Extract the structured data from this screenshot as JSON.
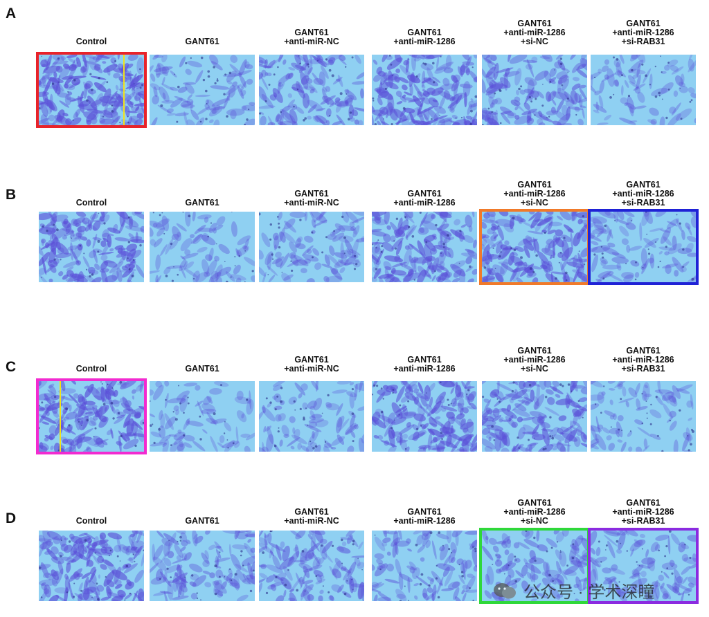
{
  "rows": [
    {
      "letter": "A",
      "labels": [
        "Control",
        "GANT61",
        "GANT61\n+anti-miR-NC",
        "GANT61\n+anti-miR-1286",
        "GANT61\n+anti-miR-1286\n+si-NC",
        "GANT61\n+anti-miR-1286\n+si-RAB31"
      ],
      "densities": [
        0.95,
        0.35,
        0.6,
        0.85,
        0.65,
        0.3
      ]
    },
    {
      "letter": "B",
      "labels": [
        "Control",
        "GANT61",
        "GANT61\n+anti-miR-NC",
        "GANT61\n+anti-miR-1286",
        "GANT61\n+anti-miR-1286\n+si-NC",
        "GANT61\n+anti-miR-1286\n+si-RAB31"
      ],
      "densities": [
        0.85,
        0.3,
        0.4,
        0.75,
        0.8,
        0.35
      ]
    },
    {
      "letter": "C",
      "labels": [
        "Control",
        "GANT61",
        "GANT61\n+anti-miR-NC",
        "GANT61\n+anti-miR-1286",
        "GANT61\n+anti-miR-1286\n+si-NC",
        "GANT61\n+anti-miR-1286\n+si-RAB31"
      ],
      "densities": [
        0.9,
        0.25,
        0.35,
        0.85,
        0.75,
        0.3
      ]
    },
    {
      "letter": "D",
      "labels": [
        "Control",
        "GANT61",
        "GANT61\n+anti-miR-NC",
        "GANT61\n+anti-miR-1286",
        "GANT61\n+anti-miR-1286\n+si-NC",
        "GANT61\n+anti-miR-1286\n+si-RAB31"
      ],
      "densities": [
        0.85,
        0.5,
        0.55,
        0.45,
        0.45,
        0.4
      ]
    }
  ],
  "highlights": [
    {
      "row": 0,
      "col": 0,
      "color": "#e8232a"
    },
    {
      "row": 1,
      "col": 4,
      "color": "#f07a2a"
    },
    {
      "row": 1,
      "col": 5,
      "color": "#1f22d6"
    },
    {
      "row": 2,
      "col": 0,
      "color": "#f22bd0"
    },
    {
      "row": 3,
      "col": 4,
      "color": "#2fd83a"
    },
    {
      "row": 3,
      "col": 5,
      "color": "#8b2be0"
    }
  ],
  "marker_lines": [
    {
      "row": 0,
      "col": 0,
      "position": 0.8,
      "color": "#f2e21a"
    },
    {
      "row": 2,
      "col": 0,
      "position": 0.2,
      "color": "#f2e21a"
    }
  ],
  "colors": {
    "background": "#8fd0f2",
    "stain": "#5b4fd8"
  },
  "watermark": {
    "text": "公众号 · 学术深瞳"
  }
}
